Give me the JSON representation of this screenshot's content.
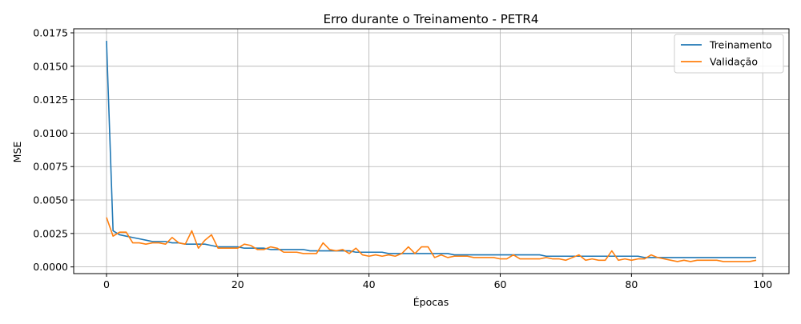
{
  "chart_data": {
    "type": "line",
    "title": "Erro durante o Treinamento - PETR4",
    "xlabel": "Épocas",
    "ylabel": "MSE",
    "xlim": [
      -5,
      104
    ],
    "ylim": [
      -0.0005,
      0.0178
    ],
    "xticks": [
      0,
      20,
      40,
      60,
      80,
      100
    ],
    "xtick_labels": [
      "0",
      "20",
      "40",
      "60",
      "80",
      "100"
    ],
    "yticks": [
      0.0,
      0.0025,
      0.005,
      0.0075,
      0.01,
      0.0125,
      0.015,
      0.0175
    ],
    "ytick_labels": [
      "0.0000",
      "0.0025",
      "0.0050",
      "0.0075",
      "0.0100",
      "0.0125",
      "0.0150",
      "0.0175"
    ],
    "grid": true,
    "legend_position": "top-right",
    "series": [
      {
        "name": "Treinamento",
        "color": "#1f77b4",
        "values": [
          0.0169,
          0.0027,
          0.0024,
          0.0023,
          0.0022,
          0.0021,
          0.002,
          0.0019,
          0.0019,
          0.0019,
          0.0018,
          0.0018,
          0.0017,
          0.0017,
          0.0017,
          0.0017,
          0.0016,
          0.0015,
          0.0015,
          0.0015,
          0.0015,
          0.0014,
          0.0014,
          0.0014,
          0.0014,
          0.0013,
          0.0013,
          0.0013,
          0.0013,
          0.0013,
          0.0013,
          0.0012,
          0.0012,
          0.0012,
          0.0012,
          0.0012,
          0.0012,
          0.0012,
          0.0011,
          0.0011,
          0.0011,
          0.0011,
          0.0011,
          0.001,
          0.001,
          0.001,
          0.001,
          0.001,
          0.001,
          0.001,
          0.001,
          0.001,
          0.001,
          0.0009,
          0.0009,
          0.0009,
          0.0009,
          0.0009,
          0.0009,
          0.0009,
          0.0009,
          0.0009,
          0.0009,
          0.0009,
          0.0009,
          0.0009,
          0.0009,
          0.0008,
          0.0008,
          0.0008,
          0.0008,
          0.0008,
          0.0008,
          0.0008,
          0.0008,
          0.0008,
          0.0008,
          0.0008,
          0.0008,
          0.0008,
          0.0008,
          0.0008,
          0.0007,
          0.0007,
          0.0007,
          0.0007,
          0.0007,
          0.0007,
          0.0007,
          0.0007,
          0.0007,
          0.0007,
          0.0007,
          0.0007,
          0.0007,
          0.0007,
          0.0007,
          0.0007,
          0.0007,
          0.0007
        ]
      },
      {
        "name": "Validação",
        "color": "#ff7f0e",
        "values": [
          0.0037,
          0.0023,
          0.0026,
          0.0026,
          0.0018,
          0.0018,
          0.0017,
          0.0018,
          0.0018,
          0.0017,
          0.0022,
          0.0018,
          0.0017,
          0.0027,
          0.0014,
          0.002,
          0.0024,
          0.0014,
          0.0014,
          0.0014,
          0.0014,
          0.0017,
          0.0016,
          0.0013,
          0.0013,
          0.0015,
          0.0014,
          0.0011,
          0.0011,
          0.0011,
          0.001,
          0.001,
          0.001,
          0.0018,
          0.0013,
          0.0012,
          0.0013,
          0.001,
          0.0014,
          0.0009,
          0.0008,
          0.0009,
          0.0008,
          0.0009,
          0.0008,
          0.001,
          0.0015,
          0.001,
          0.0015,
          0.0015,
          0.0007,
          0.0009,
          0.0007,
          0.0008,
          0.0008,
          0.0008,
          0.0007,
          0.0007,
          0.0007,
          0.0007,
          0.0006,
          0.0006,
          0.0009,
          0.0006,
          0.0006,
          0.0006,
          0.0006,
          0.0007,
          0.0006,
          0.0006,
          0.0005,
          0.0007,
          0.0009,
          0.0005,
          0.0006,
          0.0005,
          0.0005,
          0.0012,
          0.0005,
          0.0006,
          0.0005,
          0.0006,
          0.0006,
          0.0009,
          0.0007,
          0.0006,
          0.0005,
          0.0004,
          0.0005,
          0.0004,
          0.0005,
          0.0005,
          0.0005,
          0.0005,
          0.0004,
          0.0004,
          0.0004,
          0.0004,
          0.0004,
          0.0005
        ]
      }
    ]
  }
}
